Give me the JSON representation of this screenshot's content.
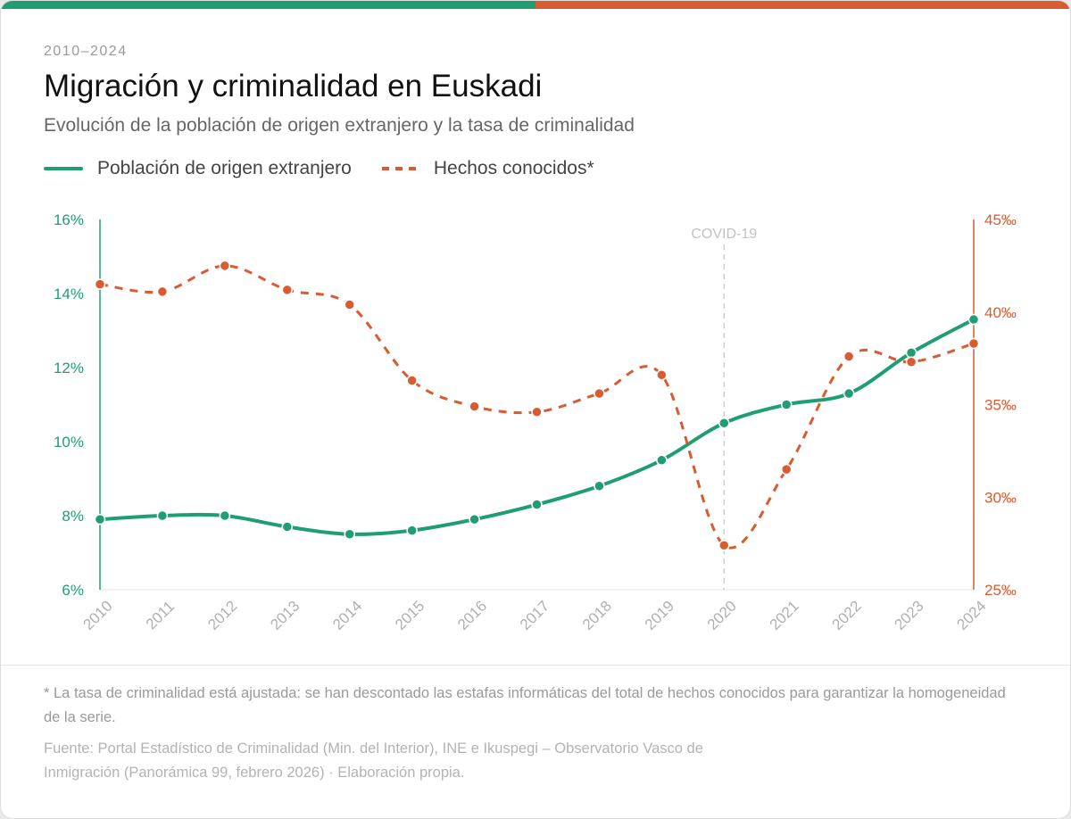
{
  "colors": {
    "foreign": "#1f9e74",
    "crime": "#d95b32",
    "covid": "#cfcfcf"
  },
  "header": {
    "eyebrow": "2010–2024",
    "title": "Migración y criminalidad en Euskadi",
    "subtitle": "Evolución de la población de origen extranjero y la tasa de criminalidad"
  },
  "footer": {
    "note": "* La tasa de criminalidad está ajustada: se han descontado las estafas informáticas del total de hechos conocidos para garantizar la homogeneidad de la serie.",
    "source": "Fuente: Portal Estadístico de Criminalidad (Min. del Interior), INE e Ikuspegi – Observatorio Vasco de Inmigración (Panorámica 99, febrero 2026) · Elaboración propia."
  },
  "chart_data": {
    "type": "line",
    "x": [
      "2010",
      "2011",
      "2012",
      "2013",
      "2014",
      "2015",
      "2016",
      "2017",
      "2018",
      "2019",
      "2020",
      "2021",
      "2022",
      "2023",
      "2024"
    ],
    "series": [
      {
        "name": "Población de origen extranjero",
        "axis": "left",
        "style": "solid",
        "values": [
          7.9,
          8.0,
          8.0,
          7.7,
          7.5,
          7.6,
          7.9,
          8.3,
          8.8,
          9.5,
          10.5,
          11.0,
          11.3,
          12.4,
          13.3
        ]
      },
      {
        "name": "Hechos conocidos*",
        "axis": "right",
        "style": "dashed",
        "values": [
          41.5,
          41.1,
          42.5,
          41.2,
          40.4,
          36.3,
          34.9,
          34.6,
          35.6,
          36.6,
          27.4,
          31.5,
          37.6,
          37.3,
          38.3
        ]
      }
    ],
    "y_left": {
      "ylim": [
        6,
        16
      ],
      "ticks": [
        6,
        8,
        10,
        12,
        14,
        16
      ],
      "tick_labels": [
        "6%",
        "8%",
        "10%",
        "12%",
        "14%",
        "16%"
      ]
    },
    "y_right": {
      "ylim": [
        25,
        45
      ],
      "ticks": [
        25,
        30,
        35,
        40,
        45
      ],
      "tick_labels": [
        "25‰",
        "30‰",
        "35‰",
        "40‰",
        "45‰"
      ]
    },
    "annotations": [
      {
        "label": "COVID-19",
        "x": "2020"
      }
    ],
    "grid": false,
    "legend": "top-left"
  }
}
